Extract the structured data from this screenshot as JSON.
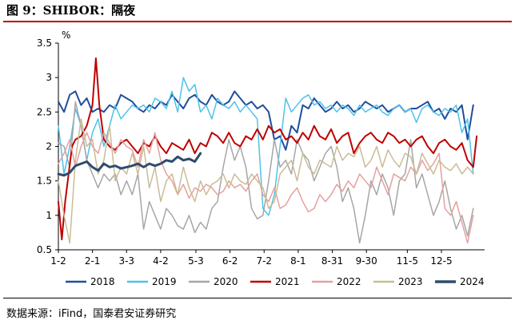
{
  "figure": {
    "title": "图 9：SHIBOR：隔夜",
    "source": "数据来源：iFind，国泰君安证券研究"
  },
  "chart_data": {
    "type": "line",
    "title": "SHIBOR：隔夜",
    "ylabel": "%",
    "xlabel": "",
    "ylim": [
      0.5,
      3.5
    ],
    "yticks": [
      0.5,
      1,
      1.5,
      2,
      2.5,
      3,
      3.5
    ],
    "ytick_labels": [
      "0.5",
      "1",
      "1.5",
      "2",
      "2.5",
      "3",
      "3.5"
    ],
    "xticks": [
      {
        "label": "1-2",
        "day": 0
      },
      {
        "label": "2-1",
        "day": 30
      },
      {
        "label": "3-3",
        "day": 60
      },
      {
        "label": "4-2",
        "day": 90
      },
      {
        "label": "5-3",
        "day": 121
      },
      {
        "label": "6-2",
        "day": 151
      },
      {
        "label": "7-2",
        "day": 181
      },
      {
        "label": "8-1",
        "day": 211
      },
      {
        "label": "8-31",
        "day": 241
      },
      {
        "label": "9-30",
        "day": 271
      },
      {
        "label": "11-5",
        "day": 307
      },
      {
        "label": "12-5",
        "day": 337
      }
    ],
    "x_range_days": [
      0,
      375
    ],
    "series": [
      {
        "name": "2018",
        "color": "#1f4e9c",
        "width": 2,
        "x": [
          0,
          5,
          10,
          15,
          20,
          25,
          30,
          35,
          40,
          45,
          50,
          55,
          60,
          65,
          70,
          75,
          80,
          85,
          90,
          95,
          100,
          105,
          110,
          115,
          120,
          125,
          130,
          135,
          140,
          145,
          150,
          155,
          160,
          165,
          170,
          175,
          180,
          185,
          190,
          195,
          200,
          205,
          210,
          215,
          220,
          225,
          230,
          235,
          240,
          245,
          250,
          255,
          260,
          265,
          270,
          275,
          280,
          285,
          290,
          295,
          300,
          305,
          310,
          315,
          320,
          325,
          330,
          335,
          340,
          345,
          350,
          355,
          360,
          365
        ],
        "values": [
          2.65,
          2.5,
          2.75,
          2.8,
          2.6,
          2.7,
          2.5,
          2.55,
          2.5,
          2.6,
          2.55,
          2.75,
          2.7,
          2.65,
          2.55,
          2.5,
          2.6,
          2.55,
          2.65,
          2.6,
          2.75,
          2.65,
          2.55,
          2.7,
          2.75,
          2.65,
          2.6,
          2.75,
          2.65,
          2.6,
          2.65,
          2.8,
          2.7,
          2.6,
          2.65,
          2.55,
          2.6,
          2.5,
          2.1,
          2.15,
          1.95,
          2.3,
          2.2,
          2.6,
          2.55,
          2.7,
          2.6,
          2.5,
          2.55,
          2.65,
          2.55,
          2.6,
          2.5,
          2.55,
          2.65,
          2.6,
          2.55,
          2.6,
          2.5,
          2.55,
          2.6,
          2.5,
          2.55,
          2.55,
          2.6,
          2.65,
          2.5,
          2.55,
          2.4,
          2.55,
          2.5,
          2.6,
          2.1,
          2.6
        ]
      },
      {
        "name": "2019",
        "color": "#4fc1e9",
        "width": 1.5,
        "x": [
          0,
          5,
          10,
          15,
          20,
          25,
          30,
          35,
          40,
          45,
          50,
          55,
          60,
          65,
          70,
          75,
          80,
          85,
          90,
          95,
          100,
          105,
          110,
          115,
          120,
          125,
          130,
          135,
          140,
          145,
          150,
          155,
          160,
          165,
          170,
          175,
          180,
          185,
          190,
          195,
          200,
          205,
          210,
          215,
          220,
          225,
          230,
          235,
          240,
          245,
          250,
          255,
          260,
          265,
          270,
          275,
          280,
          285,
          290,
          295,
          300,
          305,
          310,
          315,
          320,
          325,
          330,
          335,
          340,
          345,
          350,
          355,
          360,
          365
        ],
        "values": [
          2.3,
          1.6,
          2.0,
          2.55,
          2.3,
          1.8,
          2.2,
          2.4,
          2.0,
          2.3,
          2.6,
          2.4,
          2.5,
          2.6,
          2.55,
          2.6,
          2.5,
          2.7,
          2.65,
          2.55,
          2.8,
          2.5,
          3.0,
          2.8,
          2.9,
          2.5,
          2.6,
          2.4,
          2.7,
          2.6,
          2.55,
          2.65,
          2.5,
          2.6,
          2.5,
          2.4,
          1.1,
          1.0,
          1.3,
          2.0,
          2.7,
          2.5,
          2.6,
          2.7,
          2.75,
          2.6,
          2.65,
          2.55,
          2.6,
          2.5,
          2.6,
          2.55,
          2.45,
          2.6,
          2.5,
          2.55,
          2.6,
          2.5,
          2.45,
          2.55,
          2.6,
          2.5,
          2.55,
          2.35,
          2.55,
          2.6,
          2.5,
          2.45,
          2.55,
          2.5,
          2.6,
          2.2,
          2.4,
          1.6
        ]
      },
      {
        "name": "2020",
        "color": "#a6a6a6",
        "width": 1.5,
        "x": [
          0,
          5,
          10,
          15,
          20,
          25,
          30,
          35,
          40,
          45,
          50,
          55,
          60,
          65,
          70,
          75,
          80,
          85,
          90,
          95,
          100,
          105,
          110,
          115,
          120,
          125,
          130,
          135,
          140,
          145,
          150,
          155,
          160,
          165,
          170,
          175,
          180,
          185,
          190,
          195,
          200,
          205,
          210,
          215,
          220,
          225,
          230,
          235,
          240,
          245,
          250,
          255,
          260,
          265,
          270,
          275,
          280,
          285,
          290,
          295,
          300,
          305,
          310,
          315,
          320,
          325,
          330,
          335,
          340,
          345,
          350,
          355,
          360,
          365
        ],
        "values": [
          2.05,
          2.0,
          1.7,
          2.65,
          2.3,
          1.8,
          1.6,
          1.4,
          1.6,
          1.5,
          1.6,
          1.3,
          1.5,
          1.3,
          1.6,
          0.8,
          1.2,
          1.0,
          0.8,
          1.1,
          1.0,
          0.85,
          0.8,
          1.0,
          0.75,
          0.9,
          0.8,
          1.1,
          1.2,
          1.7,
          2.1,
          1.8,
          2.0,
          1.7,
          1.1,
          0.95,
          1.0,
          1.5,
          2.1,
          1.7,
          1.8,
          1.6,
          2.1,
          1.9,
          1.8,
          1.5,
          1.7,
          1.9,
          2.0,
          1.7,
          1.2,
          1.4,
          1.1,
          0.6,
          1.0,
          1.5,
          1.3,
          1.6,
          1.4,
          1.0,
          1.5,
          1.6,
          2.1,
          1.4,
          1.6,
          1.3,
          1.0,
          1.2,
          1.5,
          1.1,
          0.8,
          1.0,
          0.7,
          1.1
        ]
      },
      {
        "name": "2021",
        "color": "#c00000",
        "width": 2,
        "x": [
          0,
          3,
          6,
          9,
          12,
          15,
          20,
          25,
          30,
          33,
          36,
          40,
          45,
          50,
          55,
          60,
          65,
          70,
          75,
          80,
          85,
          90,
          95,
          100,
          105,
          110,
          115,
          120,
          125,
          130,
          135,
          140,
          145,
          150,
          155,
          160,
          165,
          170,
          175,
          180,
          185,
          190,
          195,
          200,
          205,
          210,
          215,
          220,
          225,
          230,
          235,
          240,
          245,
          250,
          255,
          260,
          265,
          270,
          275,
          280,
          285,
          290,
          295,
          300,
          305,
          310,
          315,
          320,
          325,
          330,
          335,
          340,
          345,
          350,
          355,
          360,
          365,
          368
        ],
        "values": [
          1.2,
          0.65,
          1.2,
          1.6,
          2.0,
          2.1,
          2.15,
          2.3,
          2.6,
          3.28,
          2.6,
          2.1,
          2.0,
          1.95,
          2.05,
          2.1,
          2.0,
          1.9,
          2.05,
          2.0,
          2.15,
          2.0,
          1.9,
          2.05,
          2.0,
          1.95,
          2.1,
          1.9,
          2.05,
          2.0,
          2.2,
          2.15,
          2.05,
          2.2,
          2.05,
          2.0,
          2.15,
          2.1,
          2.25,
          2.1,
          2.3,
          2.2,
          2.25,
          2.1,
          2.15,
          2.05,
          2.2,
          2.1,
          2.3,
          2.15,
          2.1,
          2.25,
          2.05,
          2.15,
          2.2,
          1.9,
          2.05,
          2.15,
          2.2,
          2.1,
          2.05,
          2.2,
          2.15,
          2.05,
          2.1,
          2.0,
          2.1,
          2.15,
          2.0,
          1.9,
          2.05,
          2.1,
          2.0,
          1.95,
          2.05,
          1.8,
          1.7,
          2.15
        ]
      },
      {
        "name": "2022",
        "color": "#e6a0a0",
        "width": 1.5,
        "x": [
          0,
          5,
          10,
          15,
          20,
          25,
          30,
          35,
          40,
          45,
          50,
          55,
          60,
          65,
          70,
          75,
          80,
          85,
          90,
          95,
          100,
          105,
          110,
          115,
          120,
          125,
          130,
          135,
          140,
          145,
          150,
          155,
          160,
          165,
          170,
          175,
          180,
          185,
          190,
          195,
          200,
          205,
          210,
          215,
          220,
          225,
          230,
          235,
          240,
          245,
          250,
          255,
          260,
          265,
          270,
          275,
          280,
          285,
          290,
          295,
          300,
          305,
          310,
          315,
          320,
          325,
          330,
          335,
          340,
          345,
          350,
          355,
          360,
          365
        ],
        "values": [
          1.75,
          1.9,
          2.1,
          1.7,
          2.0,
          2.2,
          2.0,
          1.9,
          2.2,
          2.05,
          1.9,
          2.1,
          2.0,
          1.95,
          1.7,
          2.1,
          1.9,
          2.2,
          1.8,
          1.6,
          1.5,
          1.3,
          1.45,
          1.25,
          1.4,
          1.35,
          1.45,
          1.4,
          1.3,
          1.35,
          1.5,
          1.4,
          1.45,
          1.35,
          1.5,
          1.6,
          1.3,
          1.2,
          1.4,
          1.1,
          1.15,
          1.3,
          1.4,
          1.2,
          1.05,
          1.1,
          1.3,
          1.2,
          1.3,
          1.45,
          1.35,
          1.5,
          1.4,
          1.6,
          1.5,
          1.4,
          1.7,
          1.5,
          1.3,
          1.6,
          1.55,
          1.5,
          1.7,
          1.6,
          1.8,
          1.65,
          1.75,
          1.9,
          1.1,
          1.0,
          1.2,
          0.9,
          0.6,
          1.0
        ]
      },
      {
        "name": "2023",
        "color": "#c9bc96",
        "width": 1.5,
        "x": [
          0,
          5,
          10,
          15,
          20,
          25,
          30,
          35,
          40,
          45,
          50,
          55,
          60,
          65,
          70,
          75,
          80,
          85,
          90,
          95,
          100,
          105,
          110,
          115,
          120,
          125,
          130,
          135,
          140,
          145,
          150,
          155,
          160,
          165,
          170,
          175,
          180,
          185,
          190,
          195,
          200,
          205,
          210,
          215,
          220,
          225,
          230,
          235,
          240,
          245,
          250,
          255,
          260,
          265,
          270,
          275,
          280,
          285,
          290,
          295,
          300,
          305,
          310,
          315,
          320,
          325,
          330,
          335,
          340,
          345,
          350,
          355,
          360,
          365
        ],
        "values": [
          1.5,
          1.0,
          0.6,
          1.8,
          2.4,
          2.0,
          2.1,
          1.6,
          1.8,
          2.3,
          1.5,
          1.7,
          1.6,
          1.9,
          1.6,
          2.0,
          1.4,
          1.7,
          1.2,
          1.5,
          1.6,
          1.3,
          1.7,
          1.4,
          1.2,
          1.5,
          1.3,
          1.45,
          1.5,
          1.6,
          1.4,
          1.6,
          1.5,
          1.45,
          1.6,
          1.5,
          1.4,
          1.1,
          1.2,
          1.6,
          1.7,
          1.8,
          1.5,
          1.9,
          1.7,
          1.6,
          1.8,
          1.75,
          1.7,
          2.0,
          1.8,
          1.9,
          1.85,
          2.0,
          1.7,
          1.8,
          2.0,
          1.7,
          1.95,
          1.8,
          1.7,
          1.9,
          1.85,
          1.6,
          1.9,
          1.75,
          1.6,
          1.8,
          1.7,
          1.65,
          1.75,
          1.6,
          1.7,
          1.6
        ]
      },
      {
        "name": "2024",
        "color": "#2f4b6e",
        "width": 3,
        "x": [
          0,
          5,
          10,
          15,
          20,
          25,
          30,
          35,
          40,
          45,
          50,
          55,
          60,
          65,
          70,
          75,
          80,
          85,
          90,
          95,
          100,
          105,
          110,
          115,
          120,
          125
        ],
        "values": [
          1.6,
          1.58,
          1.62,
          1.72,
          1.75,
          1.78,
          1.7,
          1.65,
          1.75,
          1.7,
          1.72,
          1.68,
          1.7,
          1.72,
          1.75,
          1.7,
          1.75,
          1.72,
          1.75,
          1.8,
          1.78,
          1.85,
          1.8,
          1.82,
          1.78,
          1.9
        ]
      }
    ]
  }
}
